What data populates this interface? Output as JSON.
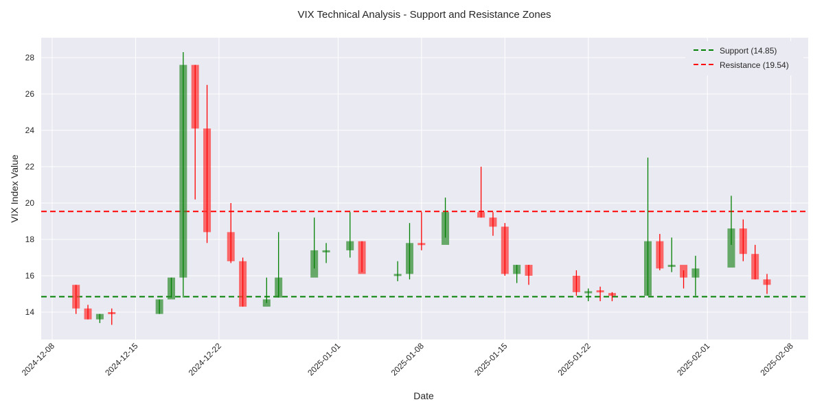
{
  "chart_data": {
    "type": "candlestick",
    "title": "VIX Technical Analysis - Support and Resistance Zones",
    "xlabel": "Date",
    "ylabel": "VIX Index Value",
    "ylim": [
      12.5,
      29.1
    ],
    "yticks": [
      14,
      16,
      18,
      20,
      22,
      24,
      26,
      28
    ],
    "xlim": [
      "2024-12-07",
      "2025-02-08"
    ],
    "xticks": [
      "2024-12-08",
      "2024-12-15",
      "2024-12-22",
      "2025-01-01",
      "2025-01-08",
      "2025-01-15",
      "2025-01-22",
      "2025-02-01",
      "2025-02-08"
    ],
    "grid": true,
    "legend_position": "upper right",
    "colors": {
      "up": "#2e8b2e",
      "down": "#ff3b3b",
      "background": "#eaeaf2",
      "grid": "#ffffff",
      "support": "#008000",
      "resistance": "#ff0000"
    },
    "levels": [
      {
        "name": "Support (14.85)",
        "value": 14.85,
        "color": "#008000"
      },
      {
        "name": "Resistance (19.54)",
        "value": 19.54,
        "color": "#ff0000"
      }
    ],
    "series": [
      {
        "date": "2024-12-10",
        "open": 15.5,
        "high": 15.5,
        "low": 13.9,
        "close": 14.2
      },
      {
        "date": "2024-12-11",
        "open": 14.2,
        "high": 14.4,
        "low": 13.6,
        "close": 13.6
      },
      {
        "date": "2024-12-12",
        "open": 13.6,
        "high": 13.9,
        "low": 13.4,
        "close": 13.9
      },
      {
        "date": "2024-12-13",
        "open": 14.0,
        "high": 14.2,
        "low": 13.3,
        "close": 13.9
      },
      {
        "date": "2024-12-17",
        "open": 13.9,
        "high": 14.7,
        "low": 13.9,
        "close": 14.7
      },
      {
        "date": "2024-12-18",
        "open": 14.7,
        "high": 15.9,
        "low": 14.8,
        "close": 15.9
      },
      {
        "date": "2024-12-19",
        "open": 15.9,
        "high": 28.3,
        "low": 14.8,
        "close": 27.6
      },
      {
        "date": "2024-12-20",
        "open": 27.6,
        "high": 27.6,
        "low": 20.2,
        "close": 24.1
      },
      {
        "date": "2024-12-21",
        "open": 24.1,
        "high": 26.5,
        "low": 17.8,
        "close": 18.4
      },
      {
        "date": "2024-12-23",
        "open": 18.4,
        "high": 20.0,
        "low": 16.7,
        "close": 16.8
      },
      {
        "date": "2024-12-24",
        "open": 16.8,
        "high": 17.0,
        "low": 14.3,
        "close": 14.3
      },
      {
        "date": "2024-12-26",
        "open": 14.3,
        "high": 15.9,
        "low": 14.5,
        "close": 14.7
      },
      {
        "date": "2024-12-27",
        "open": 14.8,
        "high": 18.4,
        "low": 14.8,
        "close": 15.9
      },
      {
        "date": "2024-12-30",
        "open": 15.9,
        "high": 19.2,
        "low": 16.4,
        "close": 17.4
      },
      {
        "date": "2024-12-31",
        "open": 17.4,
        "high": 17.8,
        "low": 16.7,
        "close": 17.4
      },
      {
        "date": "2025-01-02",
        "open": 17.4,
        "high": 19.5,
        "low": 17.0,
        "close": 17.9
      },
      {
        "date": "2025-01-03",
        "open": 17.9,
        "high": 17.9,
        "low": 16.2,
        "close": 16.1
      },
      {
        "date": "2025-01-06",
        "open": 16.1,
        "high": 16.8,
        "low": 15.7,
        "close": 16.1
      },
      {
        "date": "2025-01-07",
        "open": 16.1,
        "high": 18.9,
        "low": 15.8,
        "close": 17.8
      },
      {
        "date": "2025-01-08",
        "open": 17.8,
        "high": 19.5,
        "low": 17.4,
        "close": 17.7
      },
      {
        "date": "2025-01-10",
        "open": 17.7,
        "high": 20.3,
        "low": 18.1,
        "close": 19.5
      },
      {
        "date": "2025-01-13",
        "open": 19.5,
        "high": 22.0,
        "low": 19.2,
        "close": 19.2
      },
      {
        "date": "2025-01-14",
        "open": 19.2,
        "high": 19.5,
        "low": 18.2,
        "close": 18.7
      },
      {
        "date": "2025-01-15",
        "open": 18.7,
        "high": 18.9,
        "low": 16.0,
        "close": 16.1
      },
      {
        "date": "2025-01-16",
        "open": 16.1,
        "high": 16.6,
        "low": 15.6,
        "close": 16.6
      },
      {
        "date": "2025-01-17",
        "open": 16.6,
        "high": 16.6,
        "low": 15.5,
        "close": 16.0
      },
      {
        "date": "2025-01-21",
        "open": 16.0,
        "high": 16.3,
        "low": 14.9,
        "close": 15.1
      },
      {
        "date": "2025-01-22",
        "open": 15.1,
        "high": 15.3,
        "low": 14.6,
        "close": 15.15
      },
      {
        "date": "2025-01-23",
        "open": 15.2,
        "high": 15.4,
        "low": 14.6,
        "close": 15.1
      },
      {
        "date": "2025-01-24",
        "open": 15.05,
        "high": 15.1,
        "low": 14.6,
        "close": 14.9
      },
      {
        "date": "2025-01-27",
        "open": 14.9,
        "high": 22.5,
        "low": 14.9,
        "close": 17.9
      },
      {
        "date": "2025-01-28",
        "open": 17.9,
        "high": 18.3,
        "low": 16.3,
        "close": 16.4
      },
      {
        "date": "2025-01-29",
        "open": 16.5,
        "high": 18.1,
        "low": 16.2,
        "close": 16.6
      },
      {
        "date": "2025-01-30",
        "open": 16.6,
        "high": 16.3,
        "low": 15.3,
        "close": 15.9
      },
      {
        "date": "2025-01-31",
        "open": 15.9,
        "high": 17.1,
        "low": 14.9,
        "close": 16.4
      },
      {
        "date": "2025-02-03",
        "open": 16.45,
        "high": 20.4,
        "low": 17.7,
        "close": 18.6
      },
      {
        "date": "2025-02-04",
        "open": 18.6,
        "high": 19.1,
        "low": 16.8,
        "close": 17.2
      },
      {
        "date": "2025-02-05",
        "open": 17.2,
        "high": 17.7,
        "low": 15.8,
        "close": 15.8
      },
      {
        "date": "2025-02-06",
        "open": 15.8,
        "high": 16.1,
        "low": 15.0,
        "close": 15.5
      }
    ]
  }
}
